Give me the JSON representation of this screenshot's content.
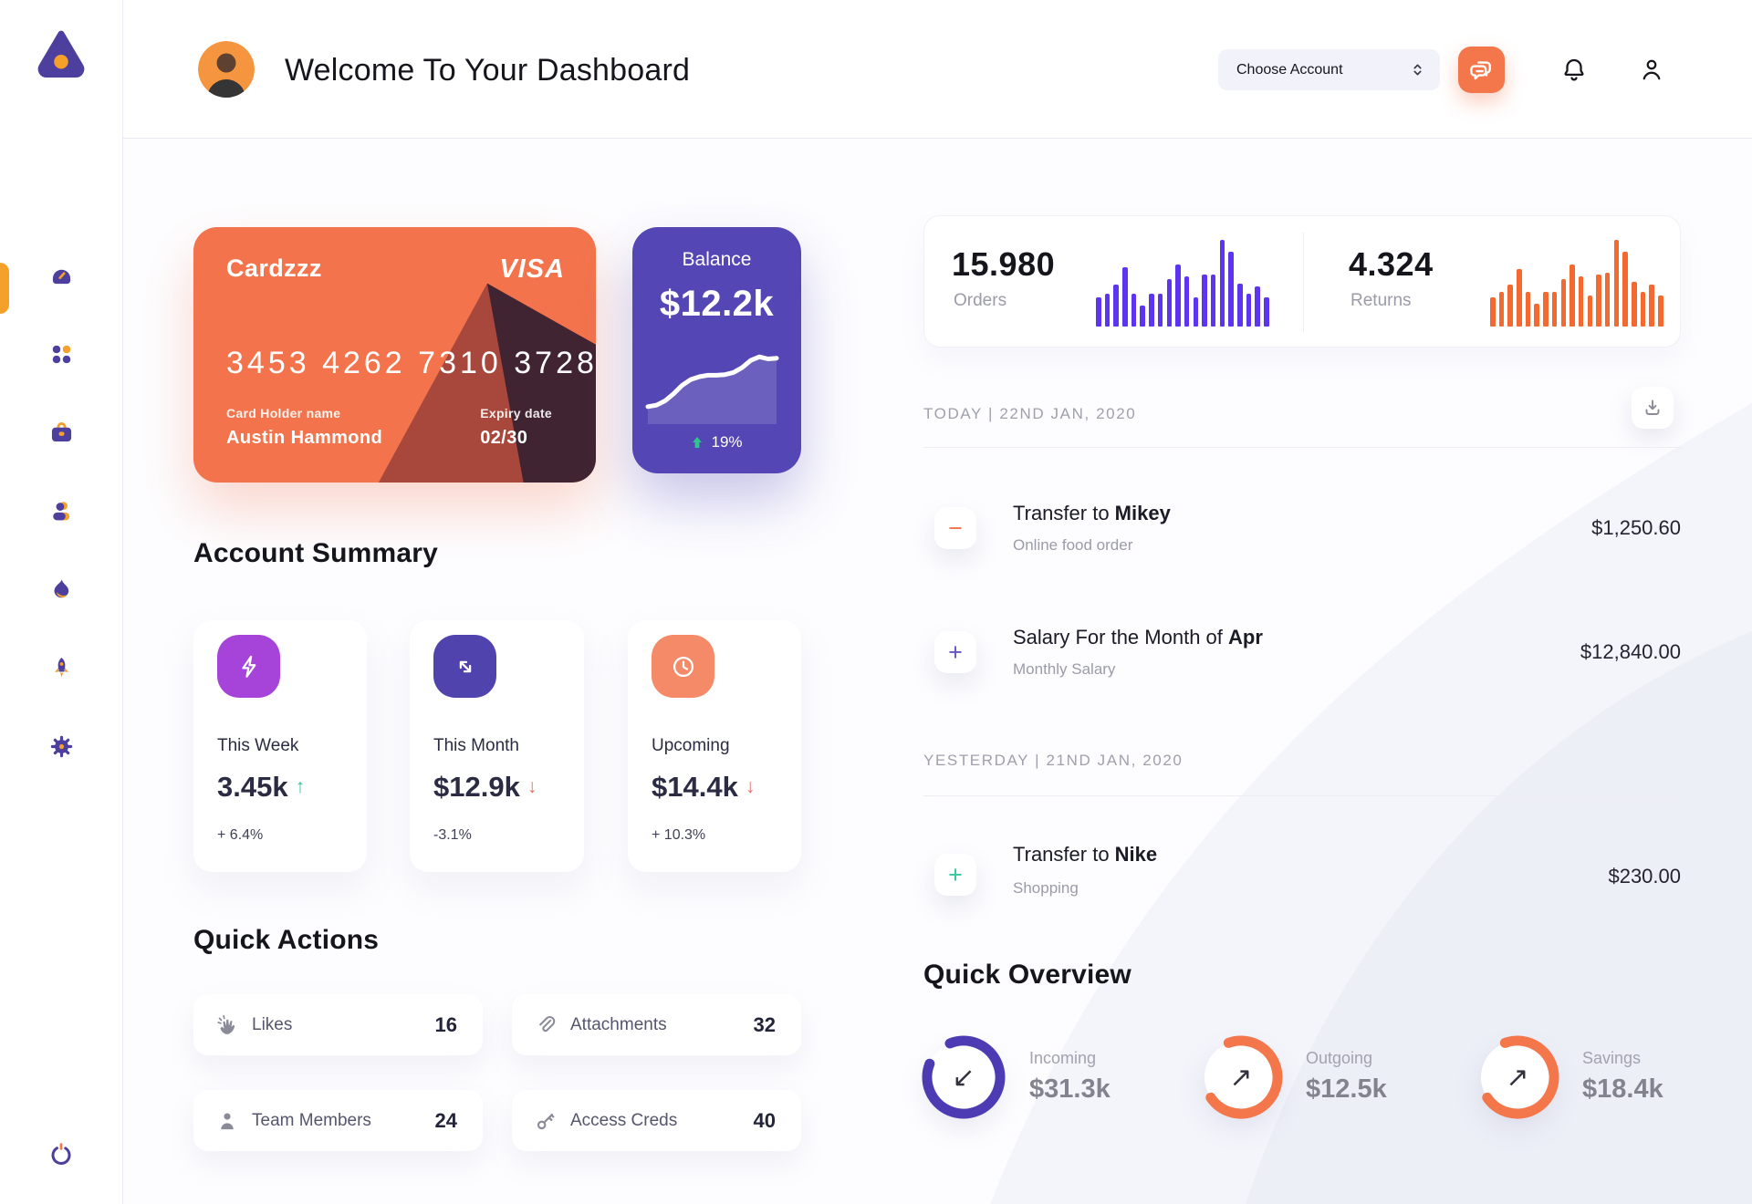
{
  "header": {
    "title": "Welcome To Your Dashboard",
    "account_selector": "Choose Account"
  },
  "sidebar": {
    "icons": [
      "dashboard",
      "apps",
      "briefcase",
      "team",
      "activity",
      "rocket",
      "settings"
    ],
    "active": "dashboard",
    "logout": "power"
  },
  "credit_card": {
    "name": "Cardzzz",
    "brand": "VISA",
    "number": "3453 4262 7310 3728",
    "holder_label": "Card Holder name",
    "holder_name": "Austin Hammond",
    "expiry_label": "Expiry date",
    "expiry": "02/30",
    "color": "#f3744c"
  },
  "balance_card": {
    "label": "Balance",
    "value": "$12.2k",
    "change": "19%",
    "color": "#5446b4"
  },
  "stats": {
    "orders": {
      "value": "15.980",
      "label": "Orders"
    },
    "returns": {
      "value": "4.324",
      "label": "Returns"
    }
  },
  "chart_data": [
    {
      "type": "bar",
      "name": "orders-sparkline",
      "color": "#5d35f0",
      "max": 100,
      "values": [
        34,
        38,
        48,
        68,
        38,
        24,
        38,
        38,
        55,
        72,
        58,
        34,
        60,
        60,
        100,
        86,
        50,
        38,
        46,
        34
      ]
    },
    {
      "type": "bar",
      "name": "returns-sparkline",
      "color": "#f4692f",
      "max": 100,
      "values": [
        34,
        40,
        48,
        66,
        40,
        26,
        40,
        40,
        55,
        72,
        58,
        36,
        60,
        62,
        100,
        86,
        52,
        40,
        48,
        36
      ]
    },
    {
      "type": "line",
      "name": "balance-trend",
      "color": "#ffffff",
      "max": 100,
      "values": [
        8,
        10,
        16,
        26,
        38,
        46,
        50,
        52,
        52,
        53,
        56,
        63,
        73,
        78,
        75,
        76
      ]
    }
  ],
  "account_summary": {
    "title": "Account Summary",
    "cards": [
      {
        "label": "This Week",
        "value": "3.45k",
        "trend_glyph": "↑",
        "trend_color": "#2ec58f",
        "change": "+ 6.4%",
        "icon": "bolt-icon",
        "icon_bg": "#a644d9"
      },
      {
        "label": "This Month",
        "value": "$12.9k",
        "trend_glyph": "↓",
        "trend_color": "#ef6a6a",
        "change": "-3.1%",
        "icon": "diagonal-arrows-icon",
        "icon_bg": "#5143ae"
      },
      {
        "label": "Upcoming",
        "value": "$14.4k",
        "trend_glyph": "↓",
        "trend_color": "#ef6a6a",
        "change": "+ 10.3%",
        "icon": "clock-icon",
        "icon_bg": "#f58a68"
      }
    ]
  },
  "quick_actions": {
    "title": "Quick Actions",
    "items": [
      {
        "label": "Likes",
        "count": "16",
        "icon": "clap-icon"
      },
      {
        "label": "Attachments",
        "count": "32",
        "icon": "paperclip-icon"
      },
      {
        "label": "Team Members",
        "count": "24",
        "icon": "member-icon"
      },
      {
        "label": "Access Creds",
        "count": "40",
        "icon": "key-icon"
      }
    ]
  },
  "transactions": {
    "today_header": "TODAY | 22ND JAN, 2020",
    "yesterday_header": "YESTERDAY | 21ND JAN, 2020",
    "rows": [
      {
        "glyph": "−",
        "icon_color": "#f4764b",
        "title_prefix": "Transfer to ",
        "title_bold": "Mikey",
        "subtitle": "Online food order",
        "amount": "$1,250.60",
        "day": "today"
      },
      {
        "glyph": "+",
        "icon_color": "#6456c8",
        "title_prefix": "Salary For the Month of ",
        "title_bold": "Apr",
        "subtitle": "Monthly Salary",
        "amount": "$12,840.00",
        "day": "today"
      },
      {
        "glyph": "+",
        "icon_color": "#35c79b",
        "title_prefix": "Transfer to ",
        "title_bold": "Nike",
        "subtitle": "Shopping",
        "amount": "$230.00",
        "day": "yesterday"
      }
    ]
  },
  "quick_overview": {
    "title": "Quick Overview",
    "items": [
      {
        "label": "Incoming",
        "value": "$31.3k",
        "color": "#4d3bb4",
        "pct": 87,
        "rotate": 248,
        "arrow": "↙"
      },
      {
        "label": "Outgoing",
        "value": "$12.5k",
        "color": "#f4764b",
        "pct": 71,
        "rotate": 250,
        "arrow": "↗"
      },
      {
        "label": "Savings",
        "value": "$18.4k",
        "color": "#f4764b",
        "pct": 71,
        "rotate": 250,
        "arrow": "↗"
      }
    ]
  }
}
